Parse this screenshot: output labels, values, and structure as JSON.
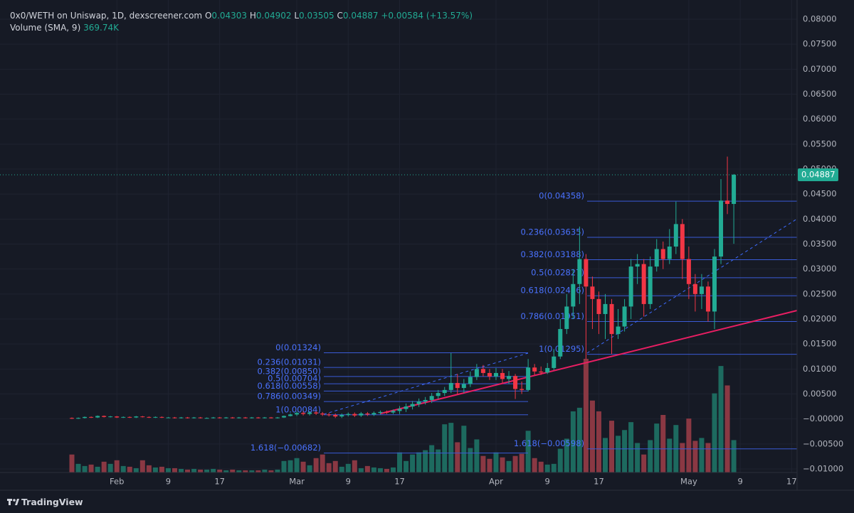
{
  "chart_data": {
    "type": "candlestick",
    "title": "0x0/WETH on Uniswap, 1D, dexscreener.com",
    "ohlc_labels": [
      "O",
      "H",
      "L",
      "C"
    ],
    "change": "+0.00584 (+13.57%)",
    "volume_label": "Volume (SMA, 9)",
    "volume_sma": "369.74K",
    "brand": "TradingView",
    "up_color": "#22ab94",
    "down_color": "#f23645",
    "volume_up_color": "#1d6a5f",
    "volume_down_color": "#8a3843",
    "categories": [
      null,
      null,
      null,
      null,
      null,
      null,
      null,
      "Feb",
      null,
      null,
      null,
      null,
      null,
      null,
      null,
      "9",
      null,
      null,
      null,
      null,
      null,
      null,
      null,
      "17",
      null,
      null,
      null,
      null,
      null,
      null,
      null,
      null,
      null,
      null,
      null,
      "Mar",
      null,
      null,
      null,
      null,
      null,
      null,
      null,
      "9",
      null,
      null,
      null,
      null,
      null,
      null,
      null,
      "17",
      null,
      null,
      null,
      null,
      null,
      null,
      null,
      null,
      null,
      null,
      null,
      null,
      null,
      null,
      "Apr",
      null,
      null,
      null,
      null,
      null,
      null,
      null,
      "9",
      null,
      null,
      null,
      null,
      null,
      null,
      null,
      "17",
      null,
      null,
      null,
      null,
      null,
      null,
      null,
      null,
      null,
      null,
      null,
      null,
      null,
      "May",
      null,
      null,
      null,
      null,
      null,
      null,
      null,
      "9",
      null,
      null,
      null,
      null,
      null,
      null,
      null,
      "17"
    ],
    "open": [
      0.0002,
      0.0001,
      0.0002,
      0.0004,
      0.0003,
      0.0006,
      0.0004,
      0.0005,
      0.0003,
      0.0004,
      0.0003,
      0.0005,
      0.0004,
      0.0003,
      0.0004,
      0.0003,
      0.0003,
      0.0002,
      0.0003,
      0.0002,
      0.0003,
      0.0002,
      0.0002,
      0.0003,
      0.0002,
      0.0003,
      0.0002,
      0.0003,
      0.0002,
      0.0003,
      0.0002,
      0.0003,
      0.0002,
      0.0003,
      0.0006,
      0.0009,
      0.0012,
      0.001,
      0.0013,
      0.0011,
      0.0009,
      0.0008,
      0.0005,
      0.0008,
      0.001,
      0.0007,
      0.0011,
      0.0009,
      0.0012,
      0.0014,
      0.0013,
      0.0016,
      0.002,
      0.0025,
      0.003,
      0.0035,
      0.0038,
      0.0046,
      0.0052,
      0.0058,
      0.0072,
      0.0062,
      0.007,
      0.0084,
      0.01,
      0.0092,
      0.0085,
      0.0092,
      0.008,
      0.0086,
      0.006,
      0.0058,
      0.0103,
      0.0095,
      0.0093,
      0.0102,
      0.0125,
      0.018,
      0.0225,
      0.027,
      0.032,
      0.0265,
      0.024,
      0.021,
      0.023,
      0.017,
      0.0185,
      0.0225,
      0.0305,
      0.031,
      0.023,
      0.0305,
      0.034,
      0.032,
      0.0345,
      0.039,
      0.032,
      0.027,
      0.025,
      0.0265,
      0.0215,
      0.0325,
      0.0437,
      0.04303,
      null,
      null,
      null,
      null,
      null,
      null,
      null,
      null,
      null
    ],
    "high": [
      0.0003,
      0.0003,
      0.0005,
      0.0005,
      0.0007,
      0.0007,
      0.0006,
      0.0006,
      0.0005,
      0.0005,
      0.0006,
      0.0006,
      0.0005,
      0.0005,
      0.0005,
      0.0004,
      0.0004,
      0.0004,
      0.0004,
      0.0004,
      0.0004,
      0.0003,
      0.0004,
      0.0004,
      0.0004,
      0.0004,
      0.0004,
      0.0004,
      0.0004,
      0.0004,
      0.0004,
      0.0004,
      0.0004,
      0.0007,
      0.0011,
      0.0015,
      0.0015,
      0.0016,
      0.0016,
      0.0014,
      0.0012,
      0.0011,
      0.0011,
      0.0013,
      0.0013,
      0.0014,
      0.0014,
      0.0015,
      0.0017,
      0.0017,
      0.0019,
      0.0026,
      0.0031,
      0.0036,
      0.0041,
      0.0044,
      0.0052,
      0.0058,
      0.0064,
      0.0132,
      0.009,
      0.008,
      0.0095,
      0.011,
      0.0108,
      0.01,
      0.0102,
      0.01,
      0.0096,
      0.009,
      0.0075,
      0.012,
      0.011,
      0.0105,
      0.0112,
      0.014,
      0.02,
      0.025,
      0.03,
      0.0385,
      0.033,
      0.0285,
      0.0255,
      0.025,
      0.024,
      0.022,
      0.024,
      0.032,
      0.033,
      0.032,
      0.0325,
      0.036,
      0.0355,
      0.038,
      0.0435,
      0.04,
      0.0345,
      0.029,
      0.029,
      0.0275,
      0.034,
      0.048,
      0.0525,
      0.04902,
      null,
      null,
      null,
      null,
      null,
      null,
      null,
      null,
      null
    ],
    "low": [
      0,
      0,
      0.0001,
      0.0002,
      0.0002,
      0.0003,
      0.0003,
      0.0002,
      0.0002,
      0.0002,
      0.0002,
      0.0003,
      0.0002,
      0.0002,
      0.0002,
      0.0002,
      0.0001,
      0.0001,
      0.0001,
      0.0001,
      0.0001,
      0.0001,
      0.0001,
      0.0001,
      0.0001,
      0.0001,
      0.0001,
      0.0001,
      0.0001,
      0.0001,
      0.0001,
      0.0001,
      0.0001,
      0.0002,
      0.0005,
      0.0006,
      0.0007,
      0.0007,
      0.0008,
      0.0006,
      0.0005,
      0.0002,
      0.0002,
      0.0005,
      0.0004,
      0.0004,
      0.0006,
      0.0006,
      0.0009,
      0.001,
      0.001,
      0.001,
      0.0014,
      0.0019,
      0.0024,
      0.0029,
      0.0032,
      0.004,
      0.0046,
      0.0052,
      0.005,
      0.0052,
      0.0064,
      0.0078,
      0.0085,
      0.0078,
      0.0078,
      0.0072,
      0.007,
      0.004,
      0.005,
      0.0055,
      0.0088,
      0.0088,
      0.009,
      0.0098,
      0.012,
      0.017,
      0.02,
      0.023,
      0.012,
      0.018,
      0.017,
      0.016,
      0.013,
      0.016,
      0.0175,
      0.02,
      0.027,
      0.0205,
      0.022,
      0.0295,
      0.03,
      0.031,
      0.033,
      0.028,
      0.024,
      0.0215,
      0.022,
      0.0195,
      0.018,
      0.031,
      0.041,
      0.03505,
      null,
      null,
      null,
      null,
      null,
      null,
      null,
      null,
      null
    ],
    "close": [
      0.0001,
      0.0002,
      0.0004,
      0.0003,
      0.0006,
      0.0004,
      0.0005,
      0.0003,
      0.0004,
      0.0003,
      0.0005,
      0.0004,
      0.0003,
      0.0004,
      0.0003,
      0.0003,
      0.0002,
      0.0003,
      0.0002,
      0.0003,
      0.0002,
      0.0002,
      0.0003,
      0.0002,
      0.0003,
      0.0002,
      0.0003,
      0.0002,
      0.0003,
      0.0002,
      0.0003,
      0.0002,
      0.0003,
      0.0006,
      0.0009,
      0.0012,
      0.001,
      0.0013,
      0.0011,
      0.0009,
      0.0008,
      0.0005,
      0.0008,
      0.001,
      0.0007,
      0.0011,
      0.0009,
      0.0012,
      0.0014,
      0.0013,
      0.0016,
      0.002,
      0.0025,
      0.003,
      0.0035,
      0.0038,
      0.0046,
      0.0052,
      0.0058,
      0.0072,
      0.0062,
      0.007,
      0.0084,
      0.01,
      0.0092,
      0.0085,
      0.0092,
      0.008,
      0.0086,
      0.006,
      0.0058,
      0.0103,
      0.0095,
      0.0093,
      0.0102,
      0.0125,
      0.018,
      0.0225,
      0.027,
      0.032,
      0.0265,
      0.024,
      0.021,
      0.023,
      0.017,
      0.0185,
      0.0225,
      0.0305,
      0.031,
      0.023,
      0.0305,
      0.034,
      0.032,
      0.0345,
      0.039,
      0.032,
      0.027,
      0.025,
      0.0265,
      0.0215,
      0.0325,
      0.0437,
      0.04303,
      0.04887,
      null,
      null,
      null,
      null,
      null,
      null,
      null,
      null,
      null
    ],
    "volume": [
      250,
      120,
      90,
      110,
      80,
      150,
      120,
      170,
      90,
      80,
      60,
      170,
      100,
      70,
      80,
      60,
      60,
      50,
      40,
      50,
      40,
      40,
      50,
      40,
      30,
      40,
      30,
      30,
      30,
      30,
      40,
      30,
      40,
      160,
      170,
      200,
      150,
      100,
      200,
      250,
      130,
      160,
      80,
      120,
      170,
      60,
      90,
      70,
      60,
      50,
      70,
      280,
      160,
      250,
      280,
      310,
      380,
      320,
      670,
      690,
      420,
      650,
      340,
      460,
      230,
      190,
      280,
      210,
      160,
      230,
      260,
      580,
      200,
      150,
      110,
      120,
      330,
      470,
      850,
      900,
      1580,
      1000,
      850,
      480,
      720,
      510,
      590,
      700,
      410,
      250,
      450,
      680,
      800,
      470,
      660,
      410,
      750,
      440,
      480,
      410,
      1100,
      1480,
      1210,
      450,
      null,
      null,
      null,
      null,
      null,
      null,
      null,
      null,
      null
    ],
    "ylim": [
      -0.0105,
      0.081
    ],
    "yticks": [
      {
        "value": 0.08,
        "label": "0.08000"
      },
      {
        "value": 0.075,
        "label": "0.07500"
      },
      {
        "value": 0.07,
        "label": "0.07000"
      },
      {
        "value": 0.065,
        "label": "0.06500"
      },
      {
        "value": 0.06,
        "label": "0.06000"
      },
      {
        "value": 0.055,
        "label": "0.05500"
      },
      {
        "value": 0.05,
        "label": "0.05000"
      },
      {
        "value": 0.045,
        "label": "0.04500"
      },
      {
        "value": 0.04,
        "label": "0.04000"
      },
      {
        "value": 0.035,
        "label": "0.03500"
      },
      {
        "value": 0.03,
        "label": "0.03000"
      },
      {
        "value": 0.025,
        "label": "0.02500"
      },
      {
        "value": 0.02,
        "label": "0.02000"
      },
      {
        "value": 0.015,
        "label": "0.01500"
      },
      {
        "value": 0.01,
        "label": "0.01000"
      },
      {
        "value": 0.005,
        "label": "0.00500"
      },
      {
        "value": 0,
        "label": "−0.00000"
      },
      {
        "value": -0.005,
        "label": "−0.00500"
      },
      {
        "value": -0.01,
        "label": "−0.01000"
      }
    ],
    "grid": true,
    "fib_retracements": [
      {
        "levels": [
          {
            "label": "0(0.01324)",
            "value": 0.01324
          },
          {
            "label": "0.236(0.01031)",
            "value": 0.01031
          },
          {
            "label": "0.382(0.00850)",
            "value": 0.0085
          },
          {
            "label": "0.5(0.00704)",
            "value": 0.00704
          },
          {
            "label": "0.618(0.00558)",
            "value": 0.00558
          },
          {
            "label": "0.786(0.00349)",
            "value": 0.00349
          },
          {
            "label": "1(0.00084)",
            "value": 0.00084
          },
          {
            "label": "1.618(−0.00682)",
            "value": -0.00682
          }
        ]
      },
      {
        "levels": [
          {
            "label": "0(0.04358)",
            "value": 0.04358
          },
          {
            "label": "0.236(0.03635)",
            "value": 0.03635
          },
          {
            "label": "0.382(0.03188)",
            "value": 0.03188
          },
          {
            "label": "0.5(0.02827)",
            "value": 0.02827
          },
          {
            "label": "0.618(0.02466)",
            "value": 0.02466
          },
          {
            "label": "0.786(0.01951)",
            "value": 0.01951
          },
          {
            "label": "1(0.01295)",
            "value": 0.01295
          },
          {
            "label": "1.618(−0.00598)",
            "value": -0.00598
          }
        ]
      }
    ]
  }
}
